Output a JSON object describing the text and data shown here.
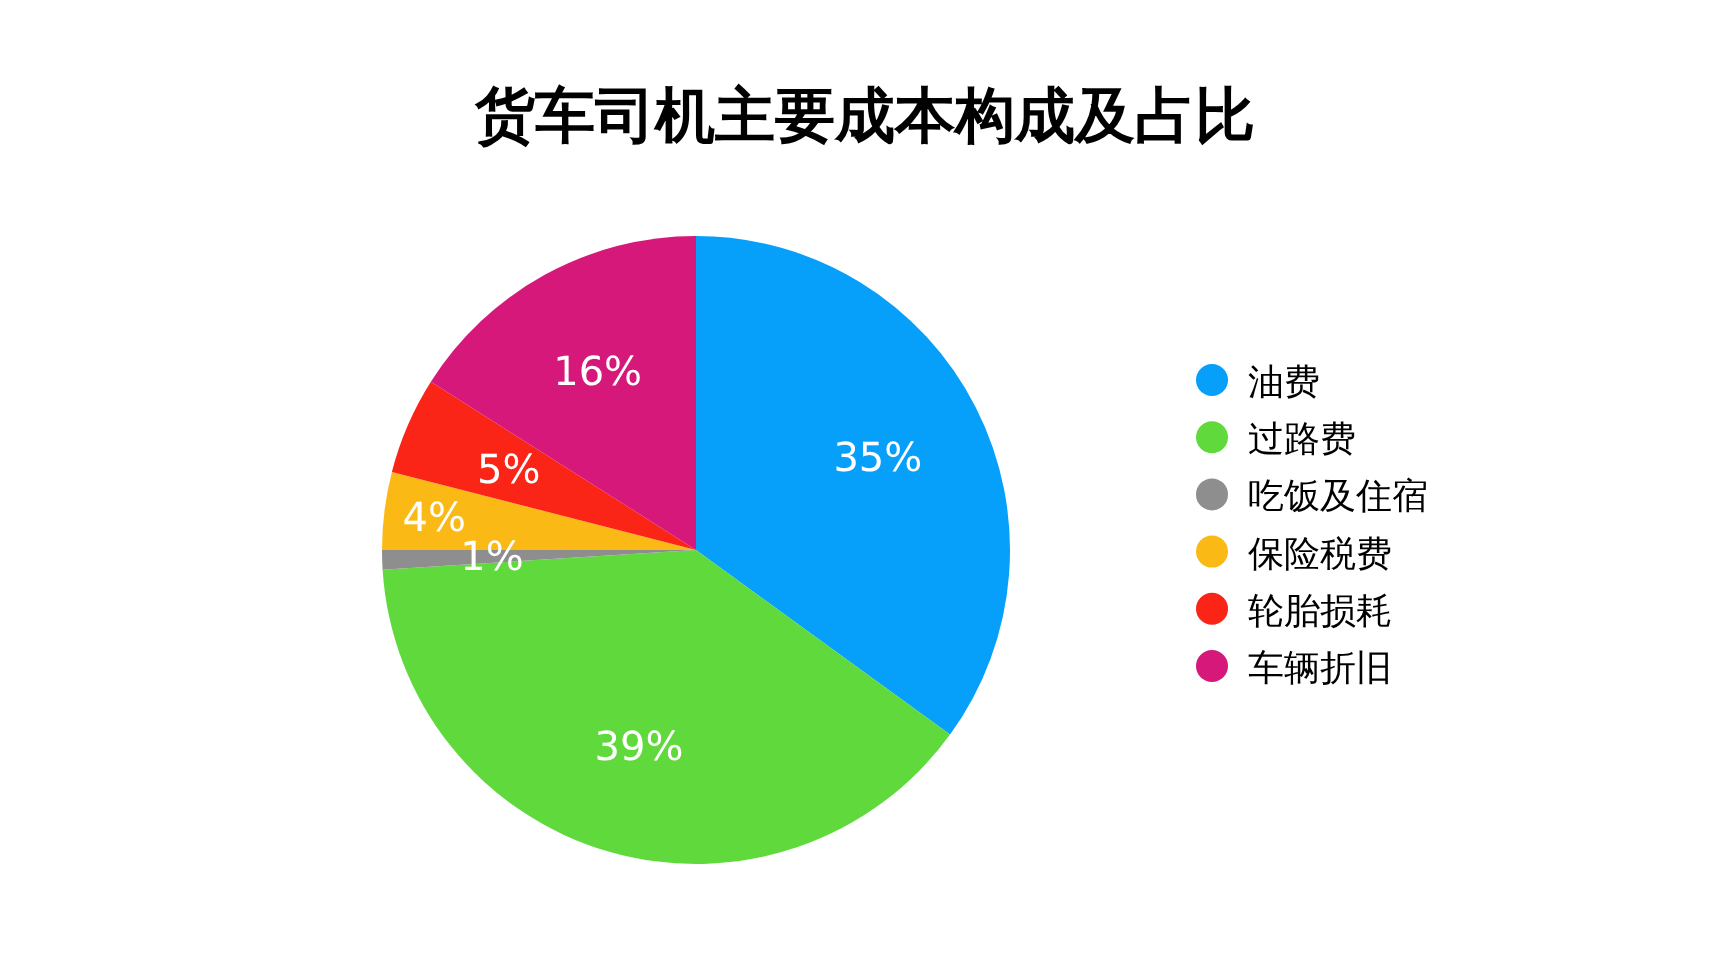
{
  "chart_data": {
    "type": "pie",
    "title": "货车司机主要成本构成及占比",
    "categories": [
      "油费",
      "过路费",
      "吃饭及住宿",
      "保险税费",
      "轮胎损耗",
      "车辆折旧"
    ],
    "values": [
      35,
      39,
      1,
      4,
      5,
      16
    ],
    "colors": [
      "#069ffa",
      "#5fd93b",
      "#8e8e8e",
      "#fbb916",
      "#fa2417",
      "#d5187a"
    ],
    "value_labels": [
      "35%",
      "39%",
      "1%",
      "4%",
      "5%",
      "16%"
    ],
    "legend": "right"
  }
}
